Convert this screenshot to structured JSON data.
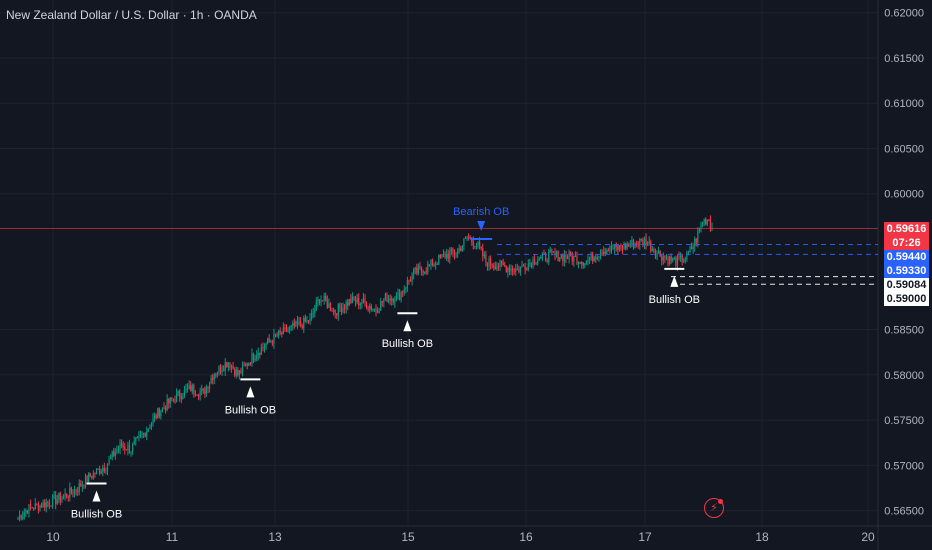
{
  "title": "New Zealand Dollar / U.S. Dollar · 1h · OANDA",
  "colors": {
    "background": "#131722",
    "grid": "#1e222d",
    "up": "#089981",
    "down": "#f23645",
    "axis_text": "#b2b5be",
    "bearish_ob": "#2962ff",
    "bullish_ob": "#ffffff"
  },
  "price_axis": {
    "ticks": [
      "0.62000",
      "0.61500",
      "0.61000",
      "0.60500",
      "0.60000",
      "0.58500",
      "0.58000",
      "0.57500",
      "0.57000",
      "0.56500"
    ],
    "badges": [
      {
        "text": "0.59616",
        "bg": "#f23645",
        "fg": "#ffffff"
      },
      {
        "text": "07:26",
        "bg": "#f23645",
        "fg": "#ffffff"
      },
      {
        "text": "0.59440",
        "bg": "#2962ff",
        "fg": "#ffffff"
      },
      {
        "text": "0.59330",
        "bg": "#2962ff",
        "fg": "#ffffff"
      },
      {
        "text": "0.59084",
        "bg": "#ffffff",
        "fg": "#131722"
      },
      {
        "text": "0.59000",
        "bg": "#ffffff",
        "fg": "#131722"
      }
    ]
  },
  "time_axis": {
    "ticks": [
      "10",
      "11",
      "13",
      "15",
      "16",
      "17",
      "18",
      "20"
    ]
  },
  "annotations": {
    "bearish_label": "Bearish OB",
    "bullish_labels": [
      "Bullish OB",
      "Bullish OB",
      "Bullish OB",
      "Bullish OB"
    ]
  },
  "chart_data": {
    "type": "candlestick",
    "title": "New Zealand Dollar / U.S. Dollar · 1h · OANDA",
    "symbol": "NZDUSD",
    "interval": "1h",
    "y_range": [
      0.5633,
      0.6214
    ],
    "last_price": 0.59616,
    "levels": [
      {
        "price": 0.5944,
        "style": "dashed",
        "color": "#2962ff"
      },
      {
        "price": 0.5933,
        "style": "dashed",
        "color": "#2962ff"
      },
      {
        "price": 0.59084,
        "style": "dashed",
        "color": "#ffffff"
      },
      {
        "price": 0.59,
        "style": "dashed",
        "color": "#ffffff"
      }
    ],
    "close_path": [
      [
        0,
        0.5642
      ],
      [
        6,
        0.5652
      ],
      [
        14,
        0.5656
      ],
      [
        24,
        0.5662
      ],
      [
        36,
        0.5672
      ],
      [
        46,
        0.5688
      ],
      [
        56,
        0.57
      ],
      [
        62,
        0.5715
      ],
      [
        66,
        0.5722
      ],
      [
        72,
        0.5718
      ],
      [
        80,
        0.5735
      ],
      [
        90,
        0.576
      ],
      [
        100,
        0.5775
      ],
      [
        110,
        0.5785
      ],
      [
        118,
        0.578
      ],
      [
        124,
        0.58
      ],
      [
        134,
        0.5815
      ],
      [
        140,
        0.58
      ],
      [
        152,
        0.5825
      ],
      [
        164,
        0.5842
      ],
      [
        176,
        0.5853
      ],
      [
        186,
        0.586
      ],
      [
        192,
        0.5885
      ],
      [
        196,
        0.588
      ],
      [
        202,
        0.587
      ],
      [
        212,
        0.5882
      ],
      [
        220,
        0.588
      ],
      [
        228,
        0.5872
      ],
      [
        234,
        0.5885
      ],
      [
        242,
        0.5886
      ],
      [
        252,
        0.5912
      ],
      [
        262,
        0.592
      ],
      [
        272,
        0.5932
      ],
      [
        280,
        0.5936
      ],
      [
        286,
        0.5952
      ],
      [
        292,
        0.5945
      ],
      [
        298,
        0.5925
      ],
      [
        308,
        0.592
      ],
      [
        318,
        0.5916
      ],
      [
        330,
        0.5928
      ],
      [
        340,
        0.5932
      ],
      [
        352,
        0.593
      ],
      [
        362,
        0.5925
      ],
      [
        372,
        0.5938
      ],
      [
        382,
        0.594
      ],
      [
        392,
        0.5945
      ],
      [
        400,
        0.5948
      ],
      [
        406,
        0.5936
      ],
      [
        414,
        0.5928
      ],
      [
        420,
        0.5925
      ],
      [
        426,
        0.593
      ],
      [
        432,
        0.595
      ],
      [
        436,
        0.597
      ],
      [
        440,
        0.5972
      ],
      [
        442,
        0.5962
      ]
    ],
    "bearish_ob": {
      "index": 295,
      "price": 0.595,
      "label": "Bearish OB"
    },
    "bullish_obs": [
      {
        "index": 50,
        "price": 0.568,
        "label": "Bullish OB"
      },
      {
        "index": 148,
        "price": 0.5795,
        "label": "Bullish OB"
      },
      {
        "index": 248,
        "price": 0.5868,
        "label": "Bullish OB"
      },
      {
        "index": 418,
        "price": 0.5917,
        "label": "Bullish OB"
      }
    ],
    "time_labels": [
      "10",
      "11",
      "13",
      "15",
      "16",
      "17",
      "18",
      "20"
    ],
    "price_ticks": [
      0.62,
      0.615,
      0.61,
      0.605,
      0.6,
      0.585,
      0.58,
      0.575,
      0.57,
      0.565
    ]
  }
}
